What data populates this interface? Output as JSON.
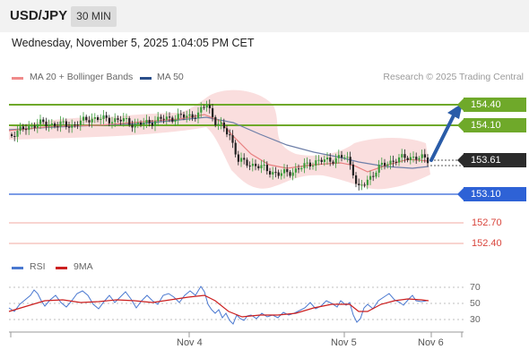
{
  "header": {
    "symbol": "USD/JPY",
    "timeframe": "30 MIN"
  },
  "datetime": "Wednesday, November 5, 2025 1:04:05 PM CET",
  "legend": {
    "ma20": "MA 20 + Bollinger Bands",
    "ma50": "MA 50",
    "credit": "Research © 2025 Trading Central"
  },
  "levels": [
    {
      "label": "154.40",
      "type": "resistance",
      "color": "#6fa92a"
    },
    {
      "label": "154.10",
      "type": "resistance",
      "color": "#6fa92a"
    },
    {
      "label": "153.61",
      "type": "current",
      "color": "#2b2b2b"
    },
    {
      "label": "153.10",
      "type": "pivot",
      "color": "#2e62d6"
    },
    {
      "label": "152.70",
      "type": "support",
      "color": "#d9453c"
    },
    {
      "label": "152.40",
      "type": "support",
      "color": "#d9453c"
    }
  ],
  "rsi_panel": {
    "legend_rsi": "RSI",
    "legend_ma": "9MA",
    "axis": [
      "70",
      "50",
      "30"
    ],
    "rsi_color": "#4472c4",
    "ma_color": "#cc0000"
  },
  "xaxis": {
    "labels": [
      "Nov 4",
      "Nov 5",
      "Nov 6"
    ]
  },
  "colors": {
    "up": "#3a9b3a",
    "down": "#222222",
    "bollinger": "#f8d7d7",
    "ma20": "#e88080",
    "ma50": "#6e7fa8"
  }
}
